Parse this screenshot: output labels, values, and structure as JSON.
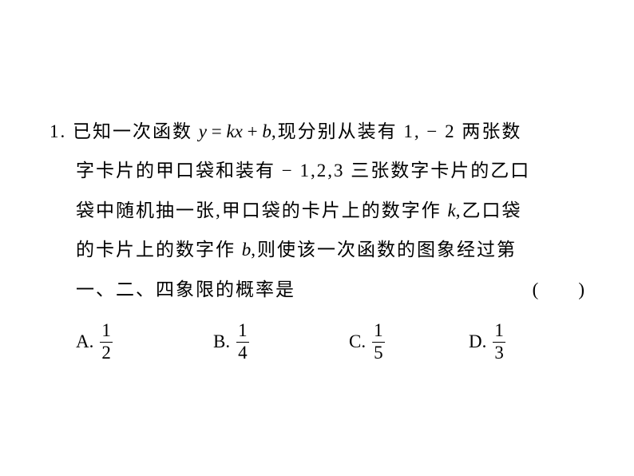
{
  "question": {
    "number": "1.",
    "line1_prefix": "已知一次函数 ",
    "eq_y": "y",
    "eq_equals": " = ",
    "eq_kx": "kx",
    "eq_plus": " + ",
    "eq_b": "b",
    "line1_suffix": ",现分别从装有 1, − 2 两张数",
    "line2": "字卡片的甲口袋和装有 − 1,2,3 三张数字卡片的乙口",
    "line3_prefix": "袋中随机抽一张,甲口袋的卡片上的数字作 ",
    "line3_k": "k",
    "line3_suffix": ",乙口袋",
    "line4_prefix": "的卡片上的数字作 ",
    "line4_b": "b",
    "line4_suffix": ",则使该一次函数的图象经过第",
    "line5_text": "一、二、四象限的概率是",
    "paren_open": "(",
    "paren_space": "　　",
    "paren_close": ")"
  },
  "choices": {
    "a": {
      "label": "A.",
      "num": "1",
      "den": "2"
    },
    "b": {
      "label": "B.",
      "num": "1",
      "den": "4"
    },
    "c": {
      "label": "C.",
      "num": "1",
      "den": "5"
    },
    "d": {
      "label": "D.",
      "num": "1",
      "den": "3"
    }
  },
  "style": {
    "text_color": "#000000",
    "background": "#ffffff",
    "font_size_body": 23,
    "line_height": 2.15,
    "letter_spacing": 2
  }
}
